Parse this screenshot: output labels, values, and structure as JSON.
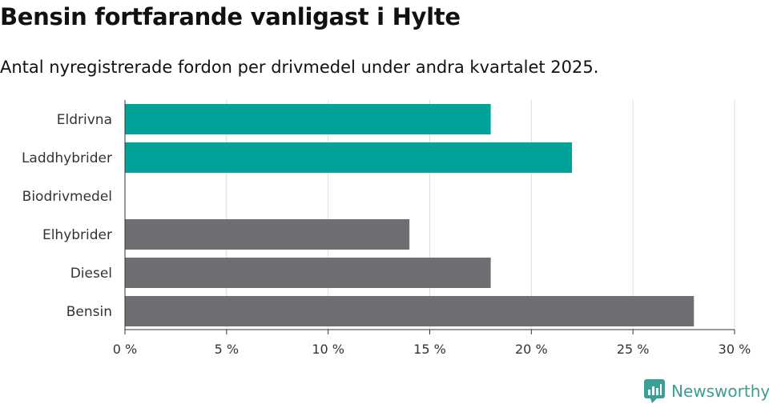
{
  "title": "Bensin fortfarande vanligast i Hylte",
  "subtitle": "Antal nyregistrerade fordon per drivmedel under andra kvartalet 2025.",
  "logo": {
    "text": "Newsworthy",
    "icon": "newsworthy-logo-icon",
    "color": "#3a9e94"
  },
  "chart_data": {
    "type": "bar",
    "orientation": "horizontal",
    "categories": [
      "Eldrivna",
      "Laddhybrider",
      "Biodrivmedel",
      "Elhybrider",
      "Diesel",
      "Bensin"
    ],
    "values": [
      18,
      22,
      0,
      14,
      18,
      28
    ],
    "colors": [
      "#00a399",
      "#00a399",
      "#00a399",
      "#6e6e73",
      "#6e6e73",
      "#6e6e73"
    ],
    "xlim": [
      0,
      30
    ],
    "xticks": [
      0,
      5,
      10,
      15,
      20,
      25,
      30
    ],
    "xtick_labels": [
      "0 %",
      "5 %",
      "10 %",
      "15 %",
      "20 %",
      "25 %",
      "30 %"
    ],
    "grid": true,
    "legend": "none"
  }
}
